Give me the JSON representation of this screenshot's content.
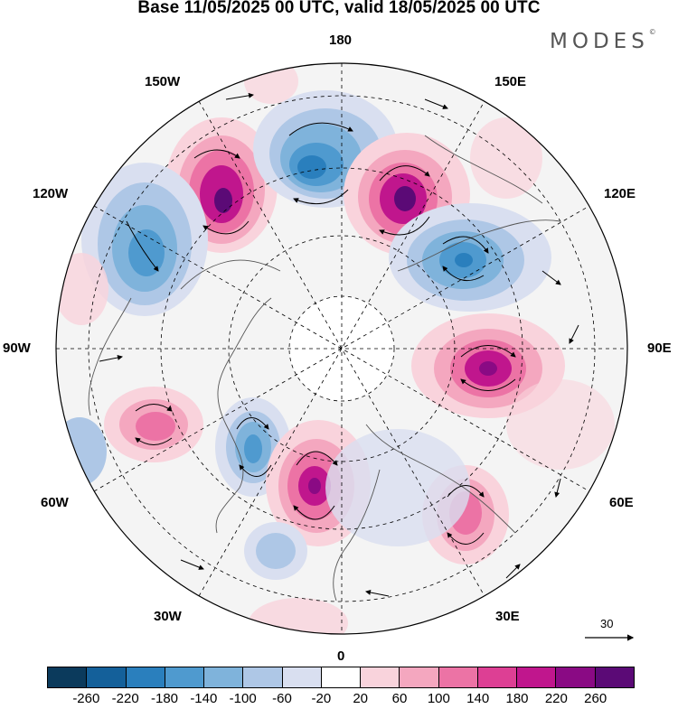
{
  "title": "Base 11/05/2025 00 UTC, valid 18/05/2025 00 UTC",
  "brand": "MODES",
  "brand_mark": "©",
  "longitude_labels": {
    "n180": "180",
    "e150": "150E",
    "e120": "120E",
    "e90": "90E",
    "e60": "60E",
    "e30": "30E",
    "z0": "0",
    "w30": "30W",
    "w60": "60W",
    "w90": "90W",
    "w120": "120W",
    "w150": "150W"
  },
  "reference_vector_label": "30",
  "colorbar": {
    "ticks": [
      "-260",
      "-220",
      "-180",
      "-140",
      "-100",
      "-60",
      "-20",
      "20",
      "60",
      "100",
      "140",
      "180",
      "220",
      "260"
    ],
    "colors": [
      "#0b3a5c",
      "#14609a",
      "#2a7fbd",
      "#4f9acf",
      "#7fb3db",
      "#aec7e6",
      "#d9dff0",
      "#ffffff",
      "#f9d3dc",
      "#f4a7bf",
      "#ec73a5",
      "#dd3f94",
      "#c0168d",
      "#8a0a84",
      "#5b0a76"
    ]
  },
  "map_features": {
    "projection": "north polar stereographic",
    "anomalies": [
      {
        "kind": "positive",
        "level": 260,
        "region": "north pacific 150W"
      },
      {
        "kind": "negative",
        "level": -180,
        "region": "arctic 180"
      },
      {
        "kind": "positive",
        "level": 260,
        "region": "east siberia 150E"
      },
      {
        "kind": "negative",
        "level": -180,
        "region": "siberia 120E"
      },
      {
        "kind": "positive",
        "level": 220,
        "region": "central asia 90E"
      },
      {
        "kind": "negative",
        "level": -140,
        "region": "north america 120W"
      },
      {
        "kind": "positive",
        "level": 140,
        "region": "north atlantic 60W"
      },
      {
        "kind": "negative",
        "level": -140,
        "region": "greenland 30W"
      },
      {
        "kind": "positive",
        "level": 220,
        "region": "north atlantic 0"
      },
      {
        "kind": "positive",
        "level": 180,
        "region": "europe 30E"
      }
    ]
  }
}
